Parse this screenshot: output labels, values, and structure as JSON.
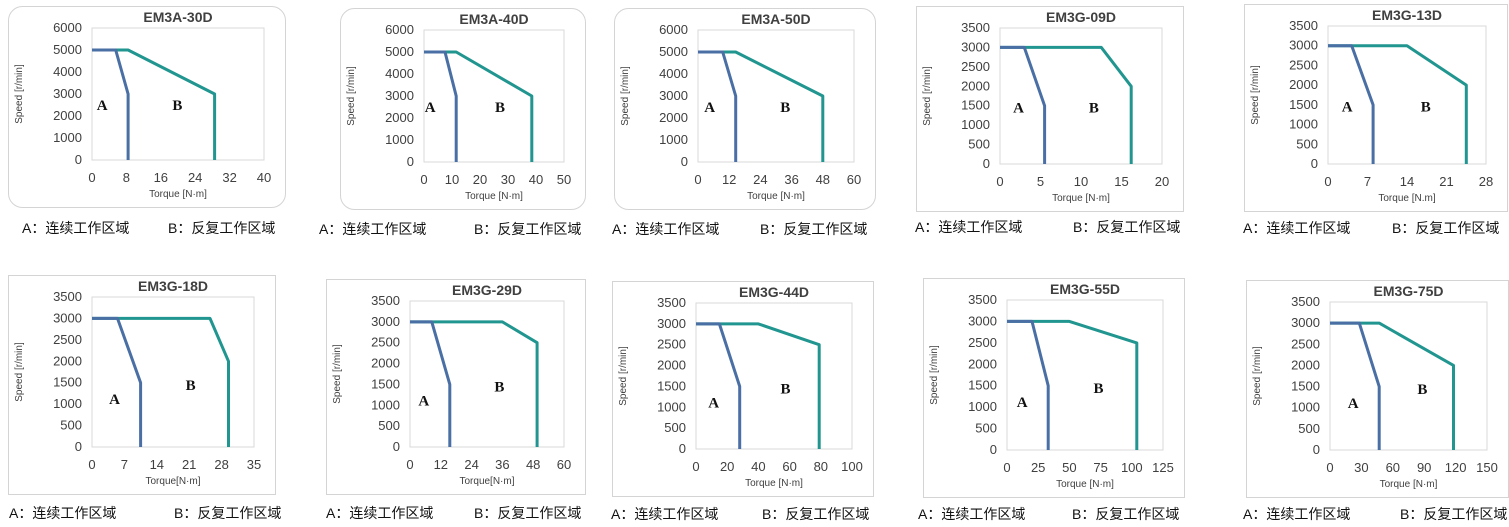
{
  "colors": {
    "region_a": "#4a6fa5",
    "region_b": "#21958f",
    "frame": "#d4d4d4"
  },
  "legend": {
    "a": "A：连续工作区域",
    "b": "B：反复工作区域"
  },
  "chart_data": [
    {
      "type": "line",
      "title": "EM3A-30D",
      "xlabel": "Torque [N·m]",
      "ylabel": "Speed [r/min]",
      "xlim": [
        0,
        40
      ],
      "ylim": [
        0,
        6000
      ],
      "xticks": [
        0,
        8,
        16,
        24,
        32,
        40
      ],
      "yticks": [
        0,
        1000,
        2000,
        3000,
        4000,
        5000,
        6000
      ],
      "region_labels": [
        "A",
        "B"
      ],
      "series": [
        {
          "name": "A",
          "x": [
            0,
            5.5,
            8.4,
            8.4
          ],
          "y": [
            5000,
            5000,
            3000,
            0
          ]
        },
        {
          "name": "B",
          "x": [
            0,
            8.4,
            28.5,
            28.5
          ],
          "y": [
            5000,
            5000,
            3000,
            0
          ]
        }
      ]
    },
    {
      "type": "line",
      "title": "EM3A-40D",
      "xlabel": "Torque [N·m]",
      "ylabel": "Speed [r/min]",
      "xlim": [
        0,
        50
      ],
      "ylim": [
        0,
        6000
      ],
      "xticks": [
        0,
        10,
        20,
        30,
        40,
        50
      ],
      "yticks": [
        0,
        1000,
        2000,
        3000,
        4000,
        5000,
        6000
      ],
      "region_labels": [
        "A",
        "B"
      ],
      "series": [
        {
          "name": "A",
          "x": [
            0,
            7.5,
            11.5,
            11.5
          ],
          "y": [
            5000,
            5000,
            3000,
            0
          ]
        },
        {
          "name": "B",
          "x": [
            0,
            11.5,
            38.5,
            38.5
          ],
          "y": [
            5000,
            5000,
            3000,
            0
          ]
        }
      ]
    },
    {
      "type": "line",
      "title": "EM3A-50D",
      "xlabel": "Torque [N·m]",
      "ylabel": "Speed [r/min]",
      "xlim": [
        0,
        60
      ],
      "ylim": [
        0,
        6000
      ],
      "xticks": [
        0,
        12,
        24,
        36,
        48,
        60
      ],
      "yticks": [
        0,
        1000,
        2000,
        3000,
        4000,
        5000,
        6000
      ],
      "region_labels": [
        "A",
        "B"
      ],
      "series": [
        {
          "name": "A",
          "x": [
            0,
            9.5,
            14.5,
            14.5
          ],
          "y": [
            5000,
            5000,
            3000,
            0
          ]
        },
        {
          "name": "B",
          "x": [
            0,
            14.5,
            48,
            48
          ],
          "y": [
            5000,
            5000,
            3000,
            0
          ]
        }
      ]
    },
    {
      "type": "line",
      "title": "EM3G-09D",
      "xlabel": "Torque [N·m]",
      "ylabel": "Speed [r/min]",
      "xlim": [
        0,
        20
      ],
      "ylim": [
        0,
        3500
      ],
      "xticks": [
        0,
        5,
        10,
        15,
        20
      ],
      "yticks": [
        0,
        500,
        1000,
        1500,
        2000,
        2500,
        3000,
        3500
      ],
      "region_labels": [
        "A",
        "B"
      ],
      "series": [
        {
          "name": "A",
          "x": [
            0,
            3,
            5.5,
            5.5
          ],
          "y": [
            3000,
            3000,
            1500,
            0
          ]
        },
        {
          "name": "B",
          "x": [
            0,
            12.5,
            16.2,
            16.2
          ],
          "y": [
            3000,
            3000,
            2000,
            0
          ]
        }
      ]
    },
    {
      "type": "line",
      "title": "EM3G-13D",
      "xlabel": "Torque [N.m]",
      "ylabel": "Speed [r/min]",
      "xlim": [
        0,
        28
      ],
      "ylim": [
        0,
        3500
      ],
      "xticks": [
        0,
        7,
        14,
        21,
        28
      ],
      "yticks": [
        0,
        500,
        1000,
        1500,
        2000,
        2500,
        3000,
        3500
      ],
      "region_labels": [
        "A",
        "B"
      ],
      "series": [
        {
          "name": "A",
          "x": [
            0,
            4.2,
            8,
            8
          ],
          "y": [
            3000,
            3000,
            1500,
            0
          ]
        },
        {
          "name": "B",
          "x": [
            0,
            14,
            24.5,
            24.5
          ],
          "y": [
            3000,
            3000,
            2000,
            0
          ]
        }
      ]
    },
    {
      "type": "line",
      "title": "EM3G-18D",
      "xlabel": "Torque[N·m]",
      "ylabel": "Speed [r/min]",
      "xlim": [
        0,
        35
      ],
      "ylim": [
        0,
        3500
      ],
      "xticks": [
        0,
        7,
        14,
        21,
        28,
        35
      ],
      "yticks": [
        0,
        500,
        1000,
        1500,
        2000,
        2500,
        3000,
        3500
      ],
      "region_labels": [
        "A",
        "B"
      ],
      "series": [
        {
          "name": "A",
          "x": [
            0,
            5.5,
            10.5,
            10.5
          ],
          "y": [
            3000,
            3000,
            1500,
            0
          ]
        },
        {
          "name": "B",
          "x": [
            0,
            25.5,
            29.5,
            29.5
          ],
          "y": [
            3000,
            3000,
            2000,
            0
          ]
        }
      ]
    },
    {
      "type": "line",
      "title": "EM3G-29D",
      "xlabel": "Torque[N·m]",
      "ylabel": "Speed [r/min]",
      "xlim": [
        0,
        60
      ],
      "ylim": [
        0,
        3500
      ],
      "xticks": [
        0,
        12,
        24,
        36,
        48,
        60
      ],
      "yticks": [
        0,
        500,
        1000,
        1500,
        2000,
        2500,
        3000,
        3500
      ],
      "region_labels": [
        "A",
        "B"
      ],
      "series": [
        {
          "name": "A",
          "x": [
            0,
            8.5,
            15.5,
            15.5
          ],
          "y": [
            3000,
            3000,
            1500,
            0
          ]
        },
        {
          "name": "B",
          "x": [
            0,
            36,
            49.5,
            49.5
          ],
          "y": [
            3000,
            3000,
            2500,
            0
          ]
        }
      ]
    },
    {
      "type": "line",
      "title": "EM3G-44D",
      "xlabel": "Torque [N·m]",
      "ylabel": "Speed [r/min]",
      "xlim": [
        0,
        100
      ],
      "ylim": [
        0,
        3500
      ],
      "xticks": [
        0,
        20,
        40,
        60,
        80,
        100
      ],
      "yticks": [
        0,
        500,
        1000,
        1500,
        2000,
        2500,
        3000,
        3500
      ],
      "region_labels": [
        "A",
        "B"
      ],
      "series": [
        {
          "name": "A",
          "x": [
            0,
            15,
            28,
            28
          ],
          "y": [
            3000,
            3000,
            1500,
            0
          ]
        },
        {
          "name": "B",
          "x": [
            0,
            40,
            79,
            79
          ],
          "y": [
            3000,
            3000,
            2500,
            0
          ]
        }
      ]
    },
    {
      "type": "line",
      "title": "EM3G-55D",
      "xlabel": "Torque [N·m]",
      "ylabel": "Speed [r/min]",
      "xlim": [
        0,
        125
      ],
      "ylim": [
        0,
        3500
      ],
      "xticks": [
        0,
        25,
        50,
        75,
        100,
        125
      ],
      "yticks": [
        0,
        500,
        1000,
        1500,
        2000,
        2500,
        3000,
        3500
      ],
      "region_labels": [
        "A",
        "B"
      ],
      "series": [
        {
          "name": "A",
          "x": [
            0,
            20,
            33,
            33
          ],
          "y": [
            3000,
            3000,
            1500,
            0
          ]
        },
        {
          "name": "B",
          "x": [
            0,
            50,
            104,
            104
          ],
          "y": [
            3000,
            3000,
            2500,
            0
          ]
        }
      ]
    },
    {
      "type": "line",
      "title": "EM3G-75D",
      "xlabel": "Torque [N·m]",
      "ylabel": "Speed [r/min]",
      "xlim": [
        0,
        150
      ],
      "ylim": [
        0,
        3500
      ],
      "xticks": [
        0,
        30,
        60,
        90,
        120,
        150
      ],
      "yticks": [
        0,
        500,
        1000,
        1500,
        2000,
        2500,
        3000,
        3500
      ],
      "region_labels": [
        "A",
        "B"
      ],
      "series": [
        {
          "name": "A",
          "x": [
            0,
            28,
            47,
            47
          ],
          "y": [
            3000,
            3000,
            1500,
            0
          ]
        },
        {
          "name": "B",
          "x": [
            0,
            47,
            118,
            118
          ],
          "y": [
            3000,
            3000,
            2000,
            0
          ]
        }
      ]
    }
  ]
}
